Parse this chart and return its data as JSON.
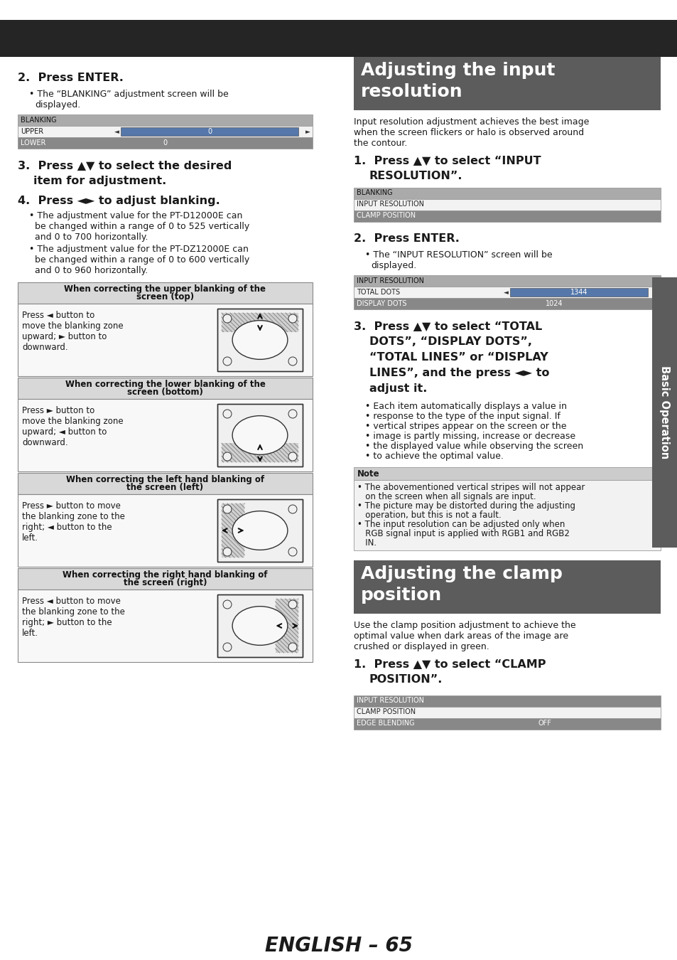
{
  "page_bg": "#ffffff",
  "header_bg": "#252525",
  "section_header_bg": "#5c5c5c",
  "section_header_text_color": "#ffffff",
  "body_text_color": "#1a1a1a",
  "note_bg_header": "#cccccc",
  "note_bg_body": "#f0f0f0",
  "table_header_bg": "#aaaaaa",
  "table_row_white": "#f5f5f5",
  "table_row_selected": "#888888",
  "table_value_box": "#5577aa",
  "table_border": "#999999",
  "sidebar_bg": "#5c5c5c",
  "box_header_bg": "#d8d8d8",
  "box_body_bg": "#f8f8f8",
  "box_border": "#888888",
  "diagram_bg": "#f0f0f0",
  "diagram_hatch": "#cccccc",
  "diagram_border": "#333333",
  "footer_text": "ENGLISH – 65",
  "left": {
    "step2_title": "2.  Press ENTER.",
    "step2_bullet": "The “BLANKING” adjustment screen will be\ndisplayed.",
    "blanking_table_header": "BLANKING",
    "blanking_rows": [
      "UPPER",
      "LOWER"
    ],
    "blanking_values": [
      "0",
      "0"
    ],
    "blanking_selected": [
      false,
      true
    ],
    "step3_title": "3.  Press ▲▼ to select the desired\n     item for adjustment.",
    "step4_title": "4.  Press ◄► to adjust blanking.",
    "step4_bullets": [
      "The adjustment value for the PT-D12000E can\nbe changed within a range of 0 to 525 vertically\nand 0 to 700 horizontally.",
      "The adjustment value for the PT-DZ12000E can\nbe changed within a range of 0 to 600 vertically\nand 0 to 960 horizontally."
    ],
    "box_headers": [
      "When correcting the upper blanking of the\nscreen (top)",
      "When correcting the lower blanking of the\nscreen (bottom)",
      "When correcting the left hand blanking of\nthe screen (left)",
      "When correcting the right hand blanking of\nthe screen (right)"
    ],
    "box_texts": [
      "Press ◄ button to\nmove the blanking zone\nupward; ► button to\ndownward.",
      "Press ► button to\nmove the blanking zone\nupward; ◄ button to\ndownward.",
      "Press ► button to move\nthe blanking zone to the\nright; ◄ button to the\nleft.",
      "Press ◄ button to move\nthe blanking zone to the\nright; ► button to the\nleft."
    ],
    "box_arrow_dirs": [
      "up",
      "down",
      "left",
      "right"
    ]
  },
  "right": {
    "sec1_title_line1": "Adjusting the input",
    "sec1_title_line2": "resolution",
    "sec1_intro": "Input resolution adjustment achieves the best image\nwhen the screen flickers or halo is observed around\nthe contour.",
    "sec1_step1_title": "1.  Press ▲▼ to select “INPUT\n     RESOLUTION”.",
    "table1_header": "BLANKING",
    "table1_rows": [
      "INPUT RESOLUTION",
      "CLAMP POSITION"
    ],
    "table1_selected": [
      false,
      true
    ],
    "sec1_step2_title": "2.  Press ENTER.",
    "sec1_step2_bullet": "The “INPUT RESOLUTION” screen will be\ndisplayed.",
    "table2_header": "INPUT RESOLUTION",
    "table2_rows": [
      "TOTAL DOTS",
      "DISPLAY DOTS"
    ],
    "table2_values": [
      "1344",
      "1024"
    ],
    "table2_selected": [
      false,
      true
    ],
    "sec1_step3_title": "3.  Press ▲▼ to select “TOTAL\n     DOTS”, “DISPLAY DOTS”,\n     “TOTAL LINES” or “DISPLAY\n     LINES”, and the press ◄► to\n     adjust it.",
    "sec1_step3_bullet": "Each item automatically displays a value in\nresponse to the type of the input signal. If\nvertical stripes appear on the screen or the\nimage is partly missing, increase or decrease\nthe displayed value while observing the screen\nto achieve the optimal value.",
    "note_header": "Note",
    "note_bullets": [
      "The abovementioned vertical stripes will not appear\non the screen when all signals are input.",
      "The picture may be distorted during the adjusting\noperation, but this is not a fault.",
      "The input resolution can be adjusted only when\nRGB signal input is applied with RGB1 and RGB2\nIN."
    ],
    "sec2_title_line1": "Adjusting the clamp",
    "sec2_title_line2": "position",
    "sec2_intro": "Use the clamp position adjustment to achieve the\noptimal value when dark areas of the image are\ncrushed or displayed in green.",
    "sec2_step1_title": "1.  Press ▲▼ to select “CLAMP\n     POSITION”.",
    "table3_header": "INPUT RESOLUTION",
    "table3_rows": [
      "CLAMP POSITION",
      "EDGE BLENDING"
    ],
    "table3_values": [
      "",
      "OFF"
    ],
    "table3_selected_header": true,
    "table3_selected": [
      false,
      true
    ]
  }
}
